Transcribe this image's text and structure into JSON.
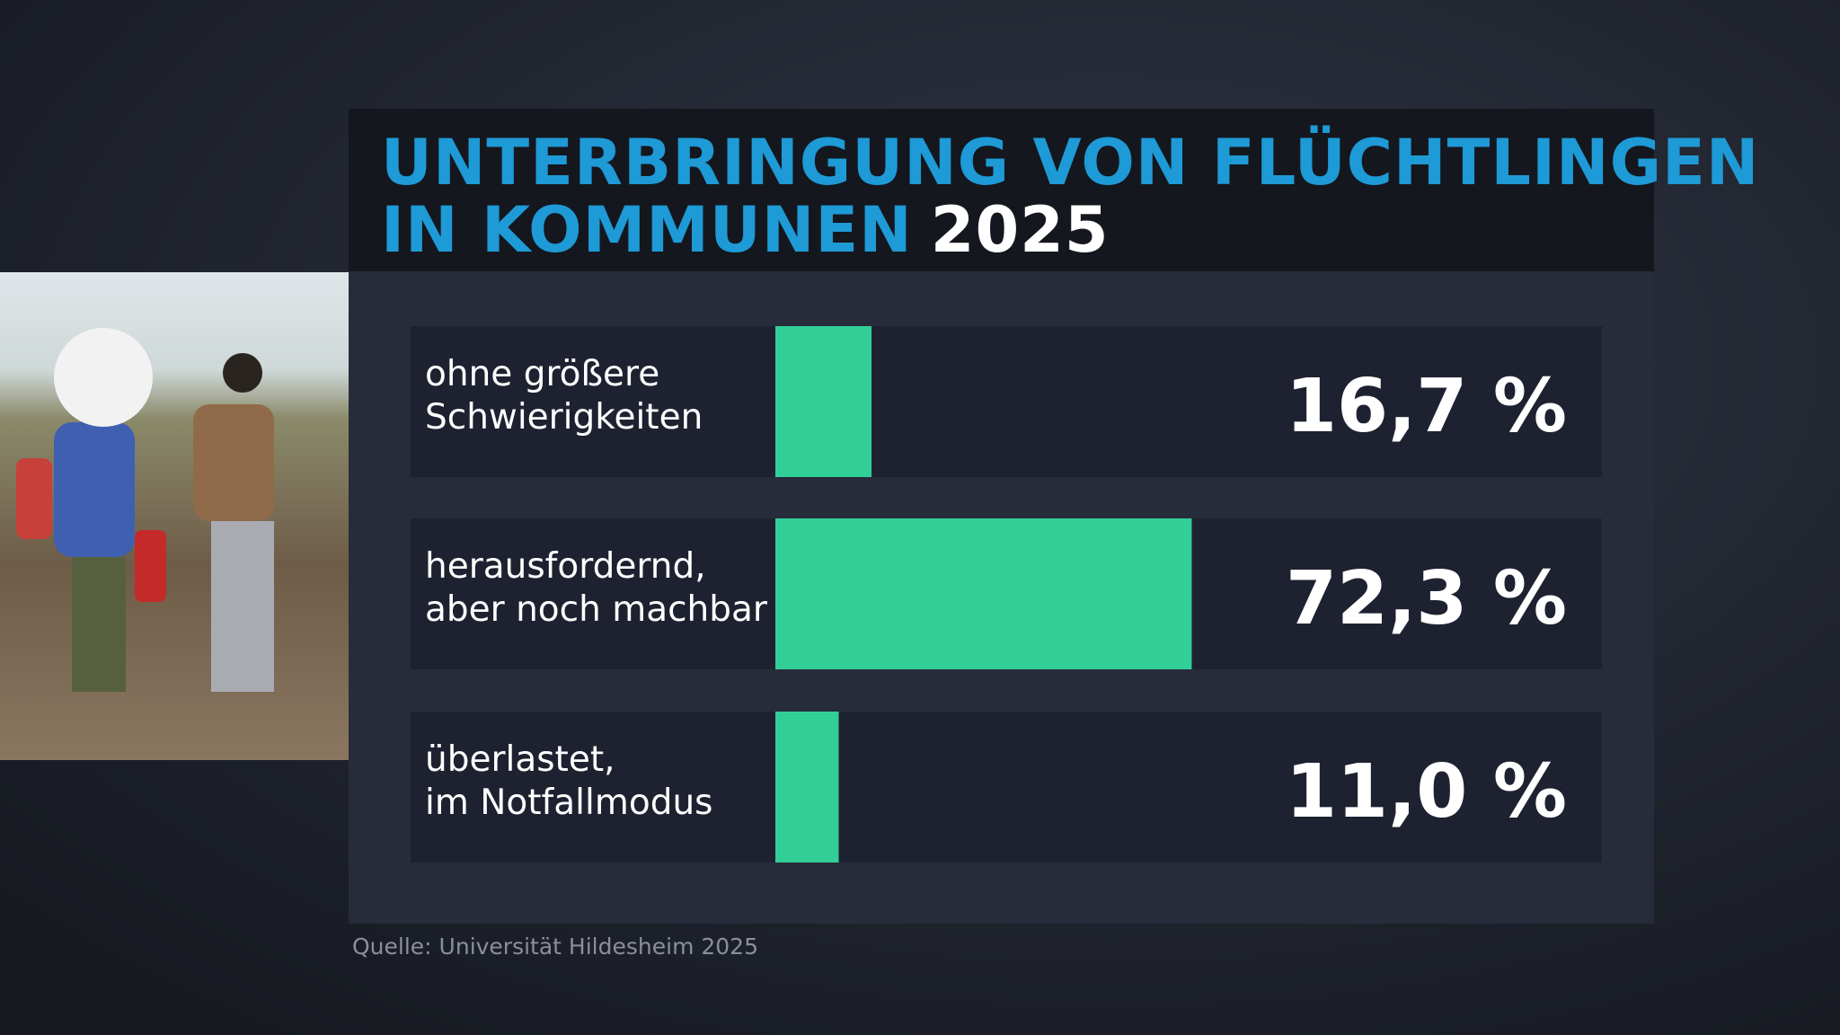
{
  "chart_data": {
    "type": "bar",
    "title_lines": [
      "UNTERBRINGUNG VON FLÜCHTLINGEN",
      "IN KOMMUNEN"
    ],
    "title_year": "2025",
    "categories": [
      [
        "ohne größere",
        "Schwierigkeiten"
      ],
      [
        "herausfordernd,",
        "aber noch machbar"
      ],
      [
        "überlastet,",
        "im Notfallmodus"
      ]
    ],
    "values": [
      16.7,
      72.3,
      11.0
    ],
    "value_labels": [
      "16,7 %",
      "72,3 %",
      "11,0 %"
    ],
    "color": "#31cf97",
    "source": "Quelle: Universität Hildesheim 2025"
  }
}
